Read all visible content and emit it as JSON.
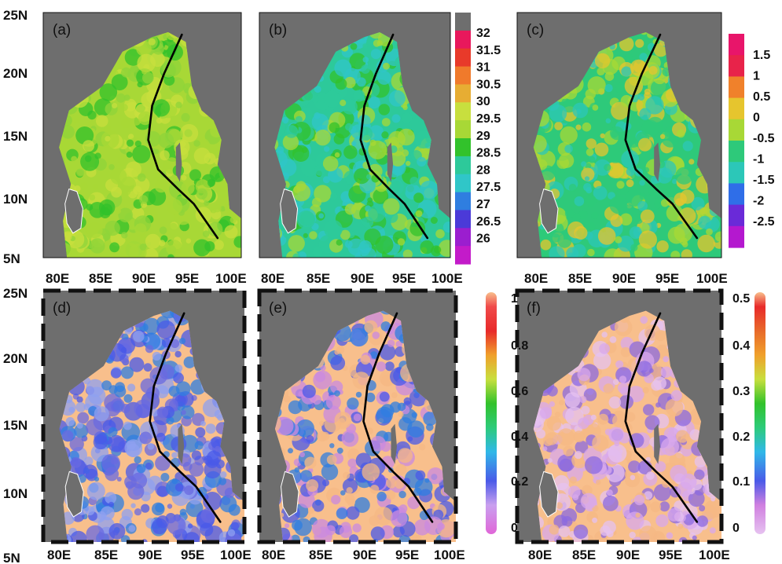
{
  "figure": {
    "lon_ticks": [
      "80E",
      "85E",
      "90E",
      "95E",
      "100E"
    ],
    "lat_ticks": [
      "25N",
      "20N",
      "15N",
      "10N",
      "5N"
    ],
    "colorbars": [
      {
        "labels": [
          "32",
          "31.5",
          "31",
          "30.5",
          "30",
          "29.5",
          "29",
          "28.5",
          "28",
          "27.5",
          "27",
          "26.5",
          "26"
        ],
        "colors": [
          "#6e6e6e",
          "#e8185c",
          "#e83a2a",
          "#f07a2b",
          "#e7ad33",
          "#c8df3e",
          "#a8d836",
          "#32c22b",
          "#2dc99a",
          "#30c6c8",
          "#2f7ee0",
          "#4b3ad8",
          "#9b1ecf",
          "#c31bc9"
        ]
      },
      {
        "labels": [
          "1.5",
          "1",
          "0.5",
          "0",
          "-0.5",
          "-1",
          "-1.5",
          "-2",
          "-2.5"
        ],
        "colors": [
          "#e8156a",
          "#e8234a",
          "#f0812b",
          "#e6c52e",
          "#a8d836",
          "#2ec97a",
          "#2cc7b8",
          "#2f6ee8",
          "#6a2ad8",
          "#b418cf"
        ]
      },
      {
        "labels": [
          "1",
          "0.8",
          "0.6",
          "0.4",
          "0.2",
          "0"
        ]
      },
      {
        "labels": [
          "0.5",
          "0.4",
          "0.3",
          "0.2",
          "0.1",
          "0"
        ]
      }
    ],
    "panels": [
      {
        "id": "a",
        "label": "(a)",
        "palette": [
          "#a8d836",
          "#8fd43a",
          "#32c22b",
          "#c8df3e"
        ]
      },
      {
        "id": "b",
        "label": "(b)",
        "palette": [
          "#2dc99a",
          "#32c22b",
          "#30c6c8",
          "#a8d836"
        ]
      },
      {
        "id": "c",
        "label": "(c)",
        "palette": [
          "#2ec97a",
          "#a8d836",
          "#2cc7b8",
          "#e6c52e"
        ]
      },
      {
        "id": "d",
        "label": "(d)",
        "palette": [
          "#4a5ae8",
          "#6a6ae0",
          "#2f7ee0",
          "#8fa0f0"
        ]
      },
      {
        "id": "e",
        "label": "(e)",
        "palette": [
          "#4a5ae8",
          "#c98ae0",
          "#2f7ee0",
          "#f5b884"
        ]
      },
      {
        "id": "f",
        "label": "(f)",
        "palette": [
          "#e6c2f0",
          "#d8a8ec",
          "#8b6ae0",
          "#f5b884"
        ]
      }
    ],
    "colors": {
      "land": "#6e6e6e",
      "shelf": "#f8bf8c",
      "track": "#000000"
    }
  }
}
